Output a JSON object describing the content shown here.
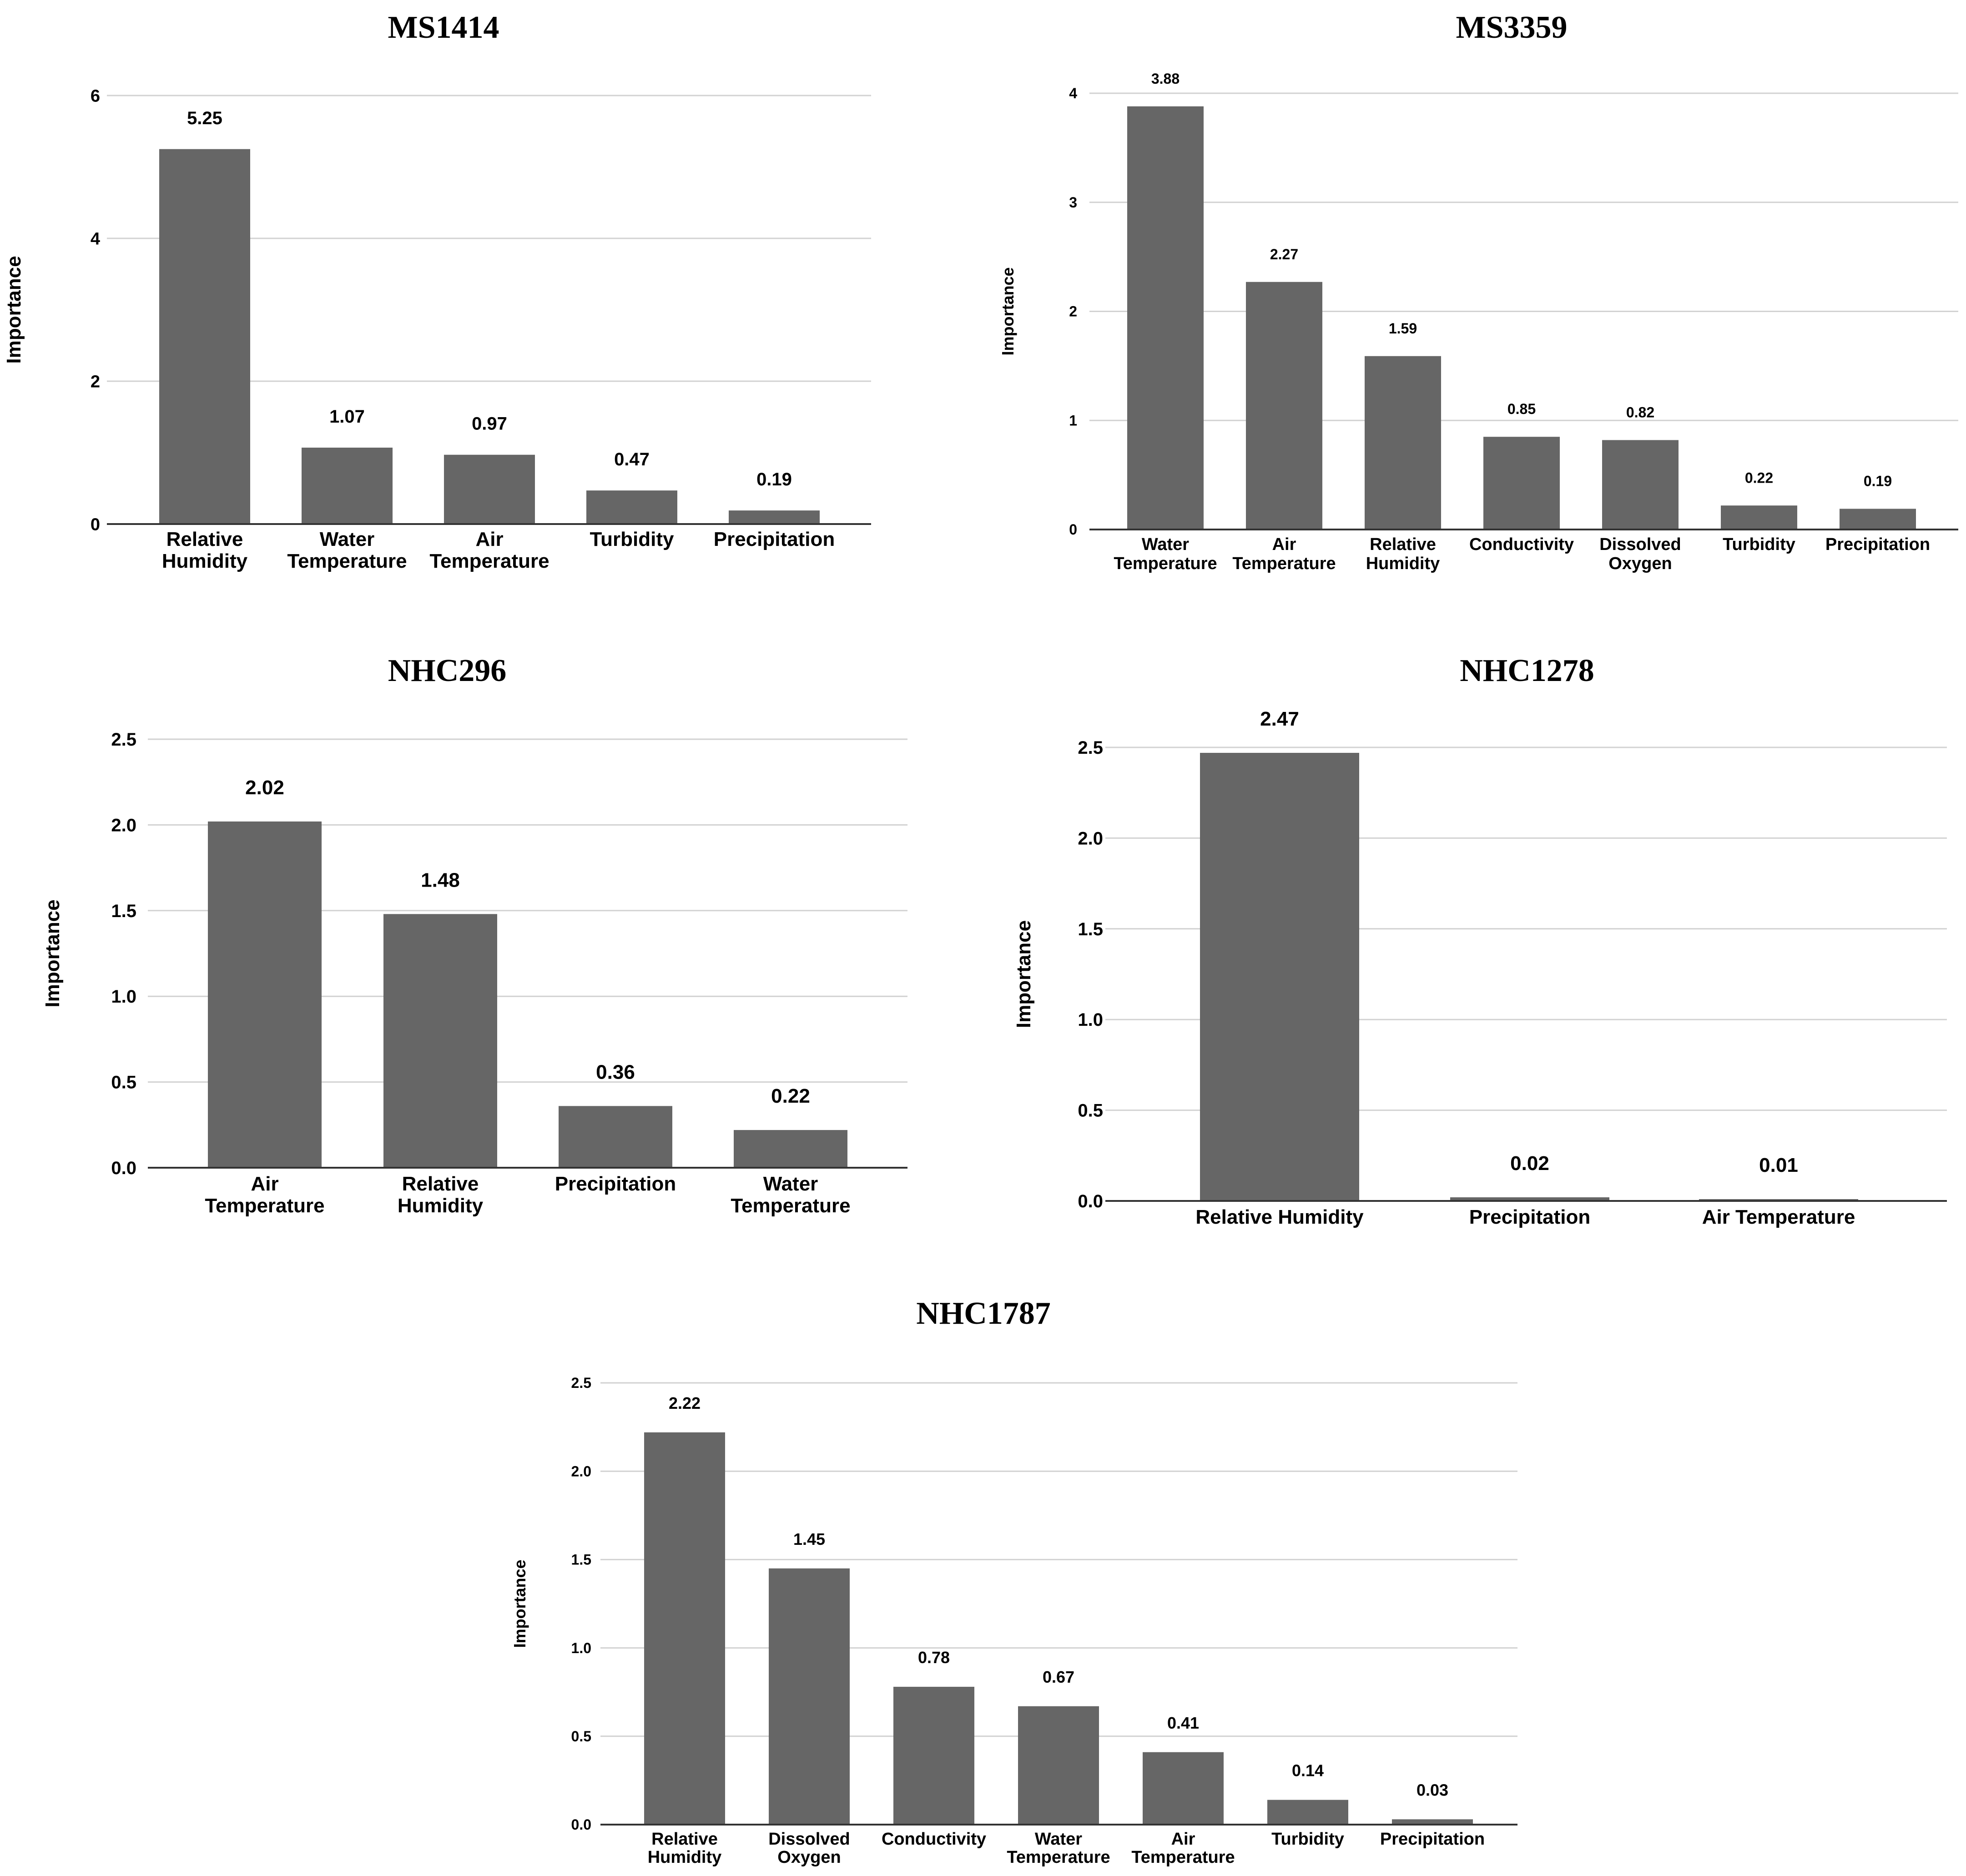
{
  "colors": {
    "bar": "#666666",
    "grid": "#d2d2d2",
    "axis": "#333333",
    "text": "#000000"
  },
  "chart_data": [
    {
      "id": "ms1414",
      "type": "bar",
      "title": "MS1414",
      "ylabel": "Importance",
      "xlabel": "",
      "ylim": [
        0,
        6
      ],
      "yticks": [
        "0",
        "2",
        "4",
        "6"
      ],
      "categories": [
        "Relative Humidity",
        "Water Temperature",
        "Air Temperature",
        "Turbidity",
        "Precipitation"
      ],
      "values": [
        5.25,
        1.07,
        0.97,
        0.47,
        0.19
      ],
      "value_labels": [
        "5.25",
        "1.07",
        "0.97",
        "0.47",
        "0.19"
      ],
      "grid": true
    },
    {
      "id": "ms3359",
      "type": "bar",
      "title": "MS3359",
      "ylabel": "Importance",
      "xlabel": "",
      "ylim": [
        0,
        4
      ],
      "yticks": [
        "0",
        "1",
        "2",
        "3",
        "4"
      ],
      "categories": [
        "Water Temperature",
        "Air Temperature",
        "Relative Humidity",
        "Conductivity",
        "Dissolved Oxygen",
        "Turbidity",
        "Precipitation"
      ],
      "values": [
        3.88,
        2.27,
        1.59,
        0.85,
        0.82,
        0.22,
        0.19
      ],
      "value_labels": [
        "3.88",
        "2.27",
        "1.59",
        "0.85",
        "0.82",
        "0.22",
        "0.19"
      ],
      "grid": true
    },
    {
      "id": "nhc296",
      "type": "bar",
      "title": "NHC296",
      "ylabel": "Importance",
      "xlabel": "",
      "ylim": [
        0,
        2.5
      ],
      "yticks": [
        "0.0",
        "0.5",
        "1.0",
        "1.5",
        "2.0",
        "2.5"
      ],
      "categories": [
        "Air Temperature",
        "Relative Humidity",
        "Precipitation",
        "Water Temperature"
      ],
      "values": [
        2.02,
        1.48,
        0.36,
        0.22
      ],
      "value_labels": [
        "2.02",
        "1.48",
        "0.36",
        "0.22"
      ],
      "grid": true
    },
    {
      "id": "nhc1278",
      "type": "bar",
      "title": "NHC1278",
      "ylabel": "Importance",
      "xlabel": "",
      "ylim": [
        0,
        2.5
      ],
      "yticks": [
        "0.0",
        "0.5",
        "1.0",
        "1.5",
        "2.0",
        "2.5"
      ],
      "categories": [
        "Relative Humidity",
        "Precipitation",
        "Air Temperature"
      ],
      "values": [
        2.47,
        0.02,
        0.01
      ],
      "value_labels": [
        "2.47",
        "0.02",
        "0.01"
      ],
      "grid": true
    },
    {
      "id": "nhc1787",
      "type": "bar",
      "title": "NHC1787",
      "ylabel": "Importance",
      "xlabel": "",
      "ylim": [
        0,
        2.5
      ],
      "yticks": [
        "0.0",
        "0.5",
        "1.0",
        "1.5",
        "2.0",
        "2.5"
      ],
      "categories": [
        "Relative Humidity",
        "Dissolved Oxygen",
        "Conductivity",
        "Water Temperature",
        "Air Temperature",
        "Turbidity",
        "Precipitation"
      ],
      "values": [
        2.22,
        1.45,
        0.78,
        0.67,
        0.41,
        0.14,
        0.03
      ],
      "value_labels": [
        "2.22",
        "1.45",
        "0.78",
        "0.67",
        "0.41",
        "0.14",
        "0.03"
      ],
      "grid": true
    }
  ]
}
